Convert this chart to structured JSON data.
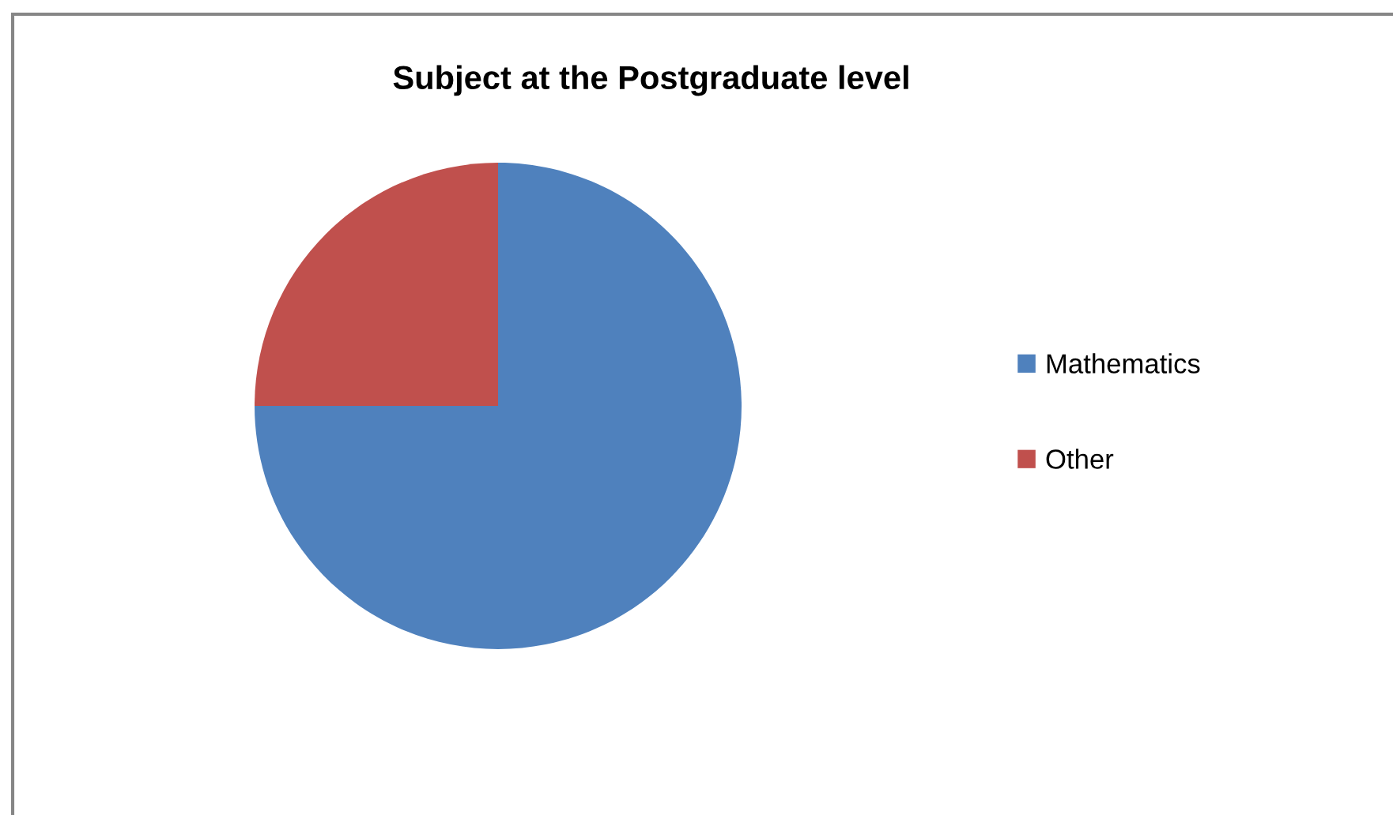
{
  "chart_data": {
    "type": "pie",
    "title": "Subject at the Postgraduate level",
    "categories": [
      "Mathematics",
      "Other"
    ],
    "values": [
      75,
      25
    ],
    "colors": [
      "#4f81bd",
      "#c0504d"
    ],
    "legend": "right"
  }
}
